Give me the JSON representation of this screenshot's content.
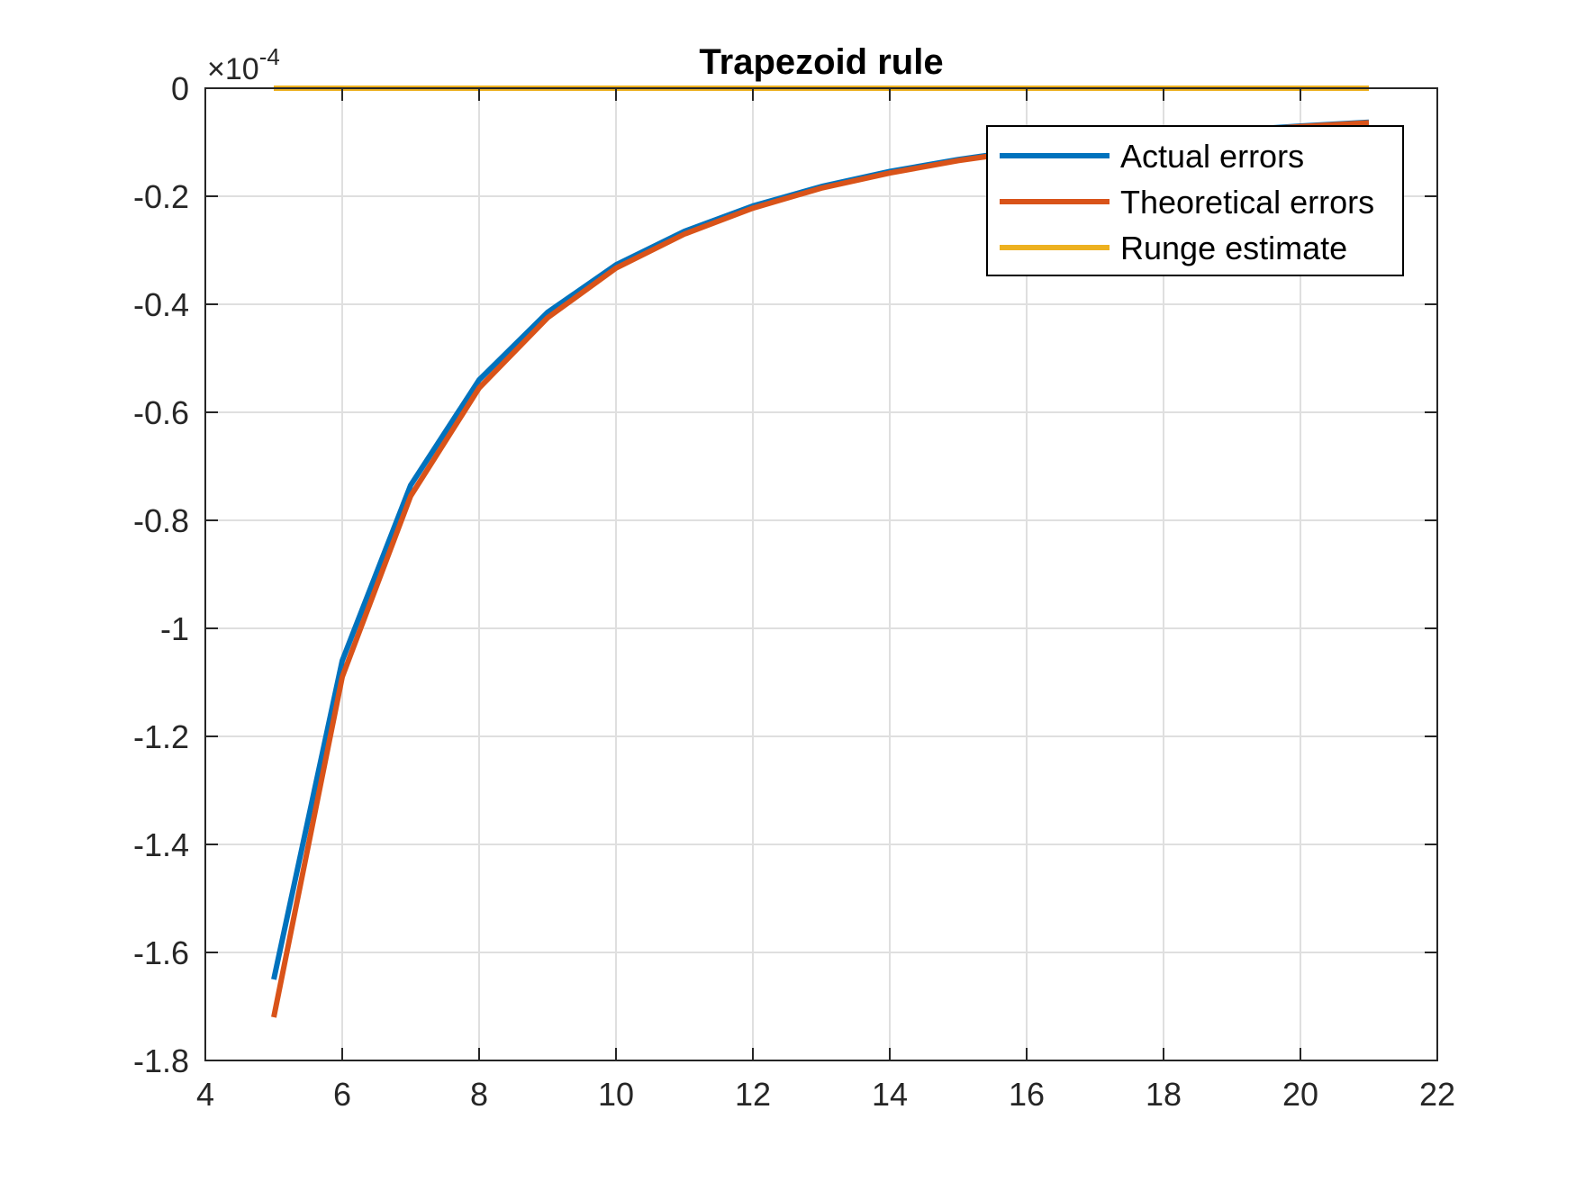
{
  "chart_data": {
    "type": "line",
    "title": "Trapezoid rule",
    "xlabel": "",
    "ylabel": "",
    "y_exponent_label": "×10",
    "y_exponent_power": "-4",
    "xlim": [
      4,
      22
    ],
    "ylim": [
      -1.8,
      0
    ],
    "x_ticks": [
      4,
      6,
      8,
      10,
      12,
      14,
      16,
      18,
      20,
      22
    ],
    "y_ticks": [
      0,
      -0.2,
      -0.4,
      -0.6,
      -0.8,
      -1,
      -1.2,
      -1.4,
      -1.6,
      -1.8
    ],
    "x_tick_labels": [
      "4",
      "6",
      "8",
      "10",
      "12",
      "14",
      "16",
      "18",
      "20",
      "22"
    ],
    "y_tick_labels": [
      "0",
      "-0.2",
      "-0.4",
      "-0.6",
      "-0.8",
      "-1",
      "-1.2",
      "-1.4",
      "-1.6",
      "-1.8"
    ],
    "grid": true,
    "legend_position": "top-right",
    "x": [
      5,
      6,
      7,
      8,
      9,
      10,
      11,
      12,
      13,
      14,
      15,
      16,
      17,
      18,
      19,
      20,
      21
    ],
    "series": [
      {
        "name": "Actual errors",
        "color": "#0072BD",
        "values": [
          -1.65,
          -1.06,
          -0.735,
          -0.54,
          -0.415,
          -0.327,
          -0.265,
          -0.218,
          -0.182,
          -0.154,
          -0.132,
          -0.114,
          -0.1,
          -0.088,
          -0.078,
          -0.07,
          -0.063
        ]
      },
      {
        "name": "Theoretical errors",
        "color": "#D95319",
        "values": [
          -1.72,
          -1.09,
          -0.755,
          -0.555,
          -0.425,
          -0.333,
          -0.27,
          -0.222,
          -0.185,
          -0.157,
          -0.134,
          -0.116,
          -0.102,
          -0.09,
          -0.08,
          -0.071,
          -0.064
        ]
      },
      {
        "name": "Runge estimate",
        "color": "#EDB120",
        "values": [
          0,
          0,
          0,
          0,
          0,
          0,
          0,
          0,
          0,
          0,
          0,
          0,
          0,
          0,
          0,
          0,
          0
        ]
      }
    ]
  }
}
